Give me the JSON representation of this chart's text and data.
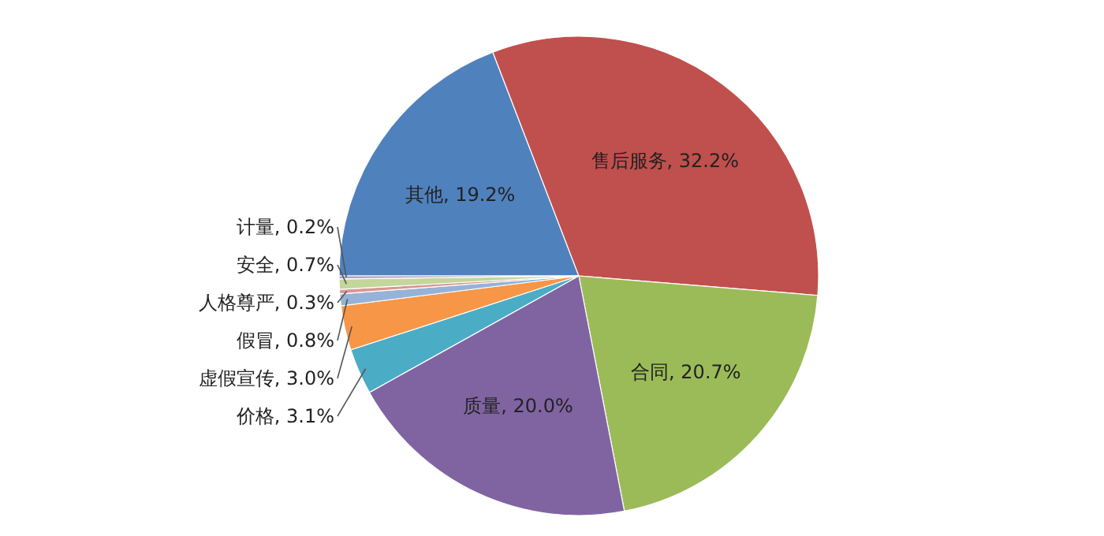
{
  "chart_data": {
    "type": "pie",
    "categories": [
      "其他",
      "售后服务",
      "合同",
      "质量",
      "价格",
      "虚假宣传",
      "假冒",
      "人格尊严",
      "安全",
      "计量"
    ],
    "values": [
      19.2,
      32.2,
      20.7,
      20.0,
      3.1,
      3.0,
      0.8,
      0.3,
      0.7,
      0.2
    ],
    "colors": [
      "#4f81bd",
      "#c0504d",
      "#9bbb59",
      "#8064a2",
      "#4bacc6",
      "#f79646",
      "#95b3d7",
      "#d99694",
      "#c3d69b",
      "#b3a2c7"
    ],
    "value_labels": [
      ", 19.2%",
      ", 32.2%",
      ", 20.7%",
      ", 20.0%",
      ", 3.1%",
      ", 3.0%",
      ", 0.8%",
      ", 0.3%",
      ", 0.7%",
      ", 0.2%"
    ]
  }
}
